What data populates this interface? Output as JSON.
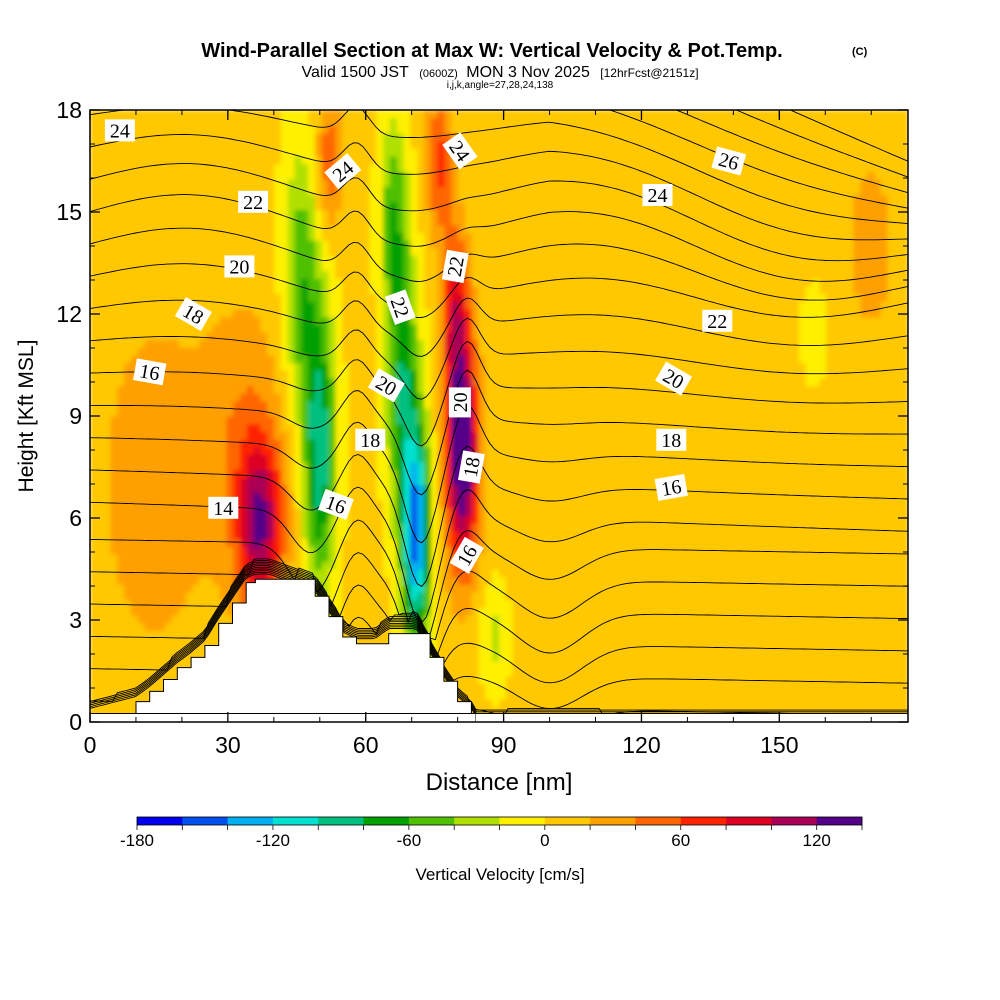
{
  "chart_data": {
    "type": "heatmap",
    "title": "Wind-Parallel Section at Max W: Vertical Velocity & Pot.Temp.",
    "title_mark": "(C)",
    "subtitle": {
      "valid_label": "Valid 1500 JST",
      "utc": "(0600Z)",
      "date": "MON 3 Nov 2025",
      "forecast": "[12hrFcst@2151z]"
    },
    "section_info": "i,j,k,angle=27,28,24,138",
    "xlabel": "Distance [nm]",
    "ylabel": "Height [Kft MSL]",
    "xlim": [
      0,
      178
    ],
    "ylim": [
      0,
      18
    ],
    "xticks": [
      0,
      30,
      60,
      90,
      120,
      150
    ],
    "xtick_labels": [
      "0",
      "30",
      "60",
      "90",
      "120",
      "150"
    ],
    "yticks": [
      0,
      3,
      6,
      9,
      12,
      15,
      18
    ],
    "ytick_labels": [
      "0",
      "3",
      "6",
      "9",
      "12",
      "15",
      "18"
    ],
    "colorbar": {
      "label": "Vertical Velocity [cm/s]",
      "levels": [
        -180,
        -160,
        -140,
        -120,
        -100,
        -80,
        -60,
        -40,
        -20,
        0,
        20,
        40,
        60,
        80,
        100,
        120,
        140
      ],
      "tick_values": [
        -180,
        -120,
        -60,
        0,
        60,
        120
      ],
      "tick_labels": [
        "-180",
        "-120",
        "-60",
        "0",
        "60",
        "120"
      ],
      "colors": [
        "#0000ee",
        "#0050ee",
        "#00b0f0",
        "#00e0d0",
        "#00c080",
        "#00a000",
        "#50c000",
        "#b0e000",
        "#fff000",
        "#ffc800",
        "#ffa000",
        "#ff6600",
        "#ff2200",
        "#dd0022",
        "#aa0055",
        "#550088"
      ]
    },
    "vertical_velocity_features": [
      {
        "kind": "background",
        "value": 5
      },
      {
        "kind": "updraft",
        "x": 37,
        "y": 5.8,
        "sx": 5,
        "sy": 2.5,
        "value": 105
      },
      {
        "kind": "updraft",
        "x": 34,
        "y": 8.5,
        "sx": 9,
        "sy": 4,
        "value": 30
      },
      {
        "kind": "updraft",
        "x": 14,
        "y": 7,
        "sx": 14,
        "sy": 6,
        "value": 25
      },
      {
        "kind": "updraft",
        "x": 76,
        "y": 16.5,
        "sx": 3,
        "sy": 2,
        "value": 60
      },
      {
        "kind": "updraft",
        "x": 52,
        "y": 16.5,
        "sx": 3,
        "sy": 2,
        "value": 50
      },
      {
        "kind": "updraft",
        "x": 81,
        "y": 7.8,
        "sx": 3.5,
        "sy": 3.2,
        "value": 150
      },
      {
        "kind": "updraft",
        "x": 79.5,
        "y": 12,
        "sx": 3,
        "sy": 2.5,
        "value": 80
      },
      {
        "kind": "downdraft",
        "x": 71,
        "y": 5.5,
        "sx": 3,
        "sy": 3.2,
        "value": -150
      },
      {
        "kind": "downdraft",
        "x": 68,
        "y": 10,
        "sx": 3.5,
        "sy": 4,
        "value": -80
      },
      {
        "kind": "downdraft",
        "x": 66,
        "y": 15,
        "sx": 3,
        "sy": 3,
        "value": -55
      },
      {
        "kind": "downdraft",
        "x": 50,
        "y": 8,
        "sx": 3.5,
        "sy": 4,
        "value": -100
      },
      {
        "kind": "downdraft",
        "x": 46,
        "y": 13,
        "sx": 4,
        "sy": 4,
        "value": -60
      },
      {
        "kind": "downdraft",
        "x": 88,
        "y": 2.5,
        "sx": 3,
        "sy": 1.5,
        "value": -30
      },
      {
        "kind": "downdraft",
        "x": 158,
        "y": 11.5,
        "sx": 3,
        "sy": 1.5,
        "value": -25
      },
      {
        "kind": "updraft",
        "x": 128,
        "y": 4,
        "sx": 15,
        "sy": 4,
        "value": 15
      },
      {
        "kind": "updraft",
        "x": 170,
        "y": 14,
        "sx": 10,
        "sy": 5,
        "value": 18
      }
    ],
    "terrain_profile": {
      "x": [
        0,
        10,
        13,
        16,
        19,
        22,
        25,
        28,
        31,
        34,
        36,
        39,
        49,
        52,
        55,
        58,
        62,
        65,
        71,
        74,
        77,
        80,
        83,
        84
      ],
      "height": [
        0.25,
        0.6,
        0.9,
        1.25,
        1.6,
        1.9,
        2.25,
        2.9,
        3.5,
        4.1,
        4.2,
        4.2,
        3.7,
        3.1,
        2.5,
        2.3,
        2.3,
        2.6,
        2.6,
        1.9,
        1.2,
        0.6,
        0.25,
        0
      ]
    },
    "potential_temperature": {
      "levels": [
        6,
        7,
        8,
        9,
        10,
        11,
        12,
        13,
        14,
        15,
        16,
        17,
        18,
        19,
        20,
        21,
        22,
        23,
        24,
        25,
        26,
        27,
        28,
        29,
        30,
        31,
        32,
        33
      ],
      "labels": [
        {
          "text": "24",
          "x": 6.5,
          "y": 17.4,
          "angle": 0
        },
        {
          "text": "22",
          "x": 35.5,
          "y": 15.3,
          "angle": 0
        },
        {
          "text": "20",
          "x": 32.5,
          "y": 13.4,
          "angle": 0
        },
        {
          "text": "18",
          "x": 22.5,
          "y": 12,
          "angle": 30
        },
        {
          "text": "16",
          "x": 13,
          "y": 10.3,
          "angle": 10
        },
        {
          "text": "14",
          "x": 29,
          "y": 6.3,
          "angle": 0
        },
        {
          "text": "24",
          "x": 55,
          "y": 16.2,
          "angle": -40
        },
        {
          "text": "22",
          "x": 67.5,
          "y": 12.2,
          "angle": 70
        },
        {
          "text": "20",
          "x": 64.5,
          "y": 9.9,
          "angle": 30
        },
        {
          "text": "18",
          "x": 61,
          "y": 8.3,
          "angle": 0
        },
        {
          "text": "16",
          "x": 53.5,
          "y": 6.4,
          "angle": 20
        },
        {
          "text": "24",
          "x": 80.5,
          "y": 16.8,
          "angle": 55
        },
        {
          "text": "22",
          "x": 79.5,
          "y": 13.4,
          "angle": -80
        },
        {
          "text": "20",
          "x": 80.5,
          "y": 9.4,
          "angle": -90
        },
        {
          "text": "18",
          "x": 83,
          "y": 7.5,
          "angle": -80
        },
        {
          "text": "16",
          "x": 82,
          "y": 4.9,
          "angle": -60
        },
        {
          "text": "24",
          "x": 123.5,
          "y": 15.5,
          "angle": 0
        },
        {
          "text": "26",
          "x": 139,
          "y": 16.5,
          "angle": 15
        },
        {
          "text": "22",
          "x": 136.5,
          "y": 11.8,
          "angle": 0
        },
        {
          "text": "20",
          "x": 127,
          "y": 10.1,
          "angle": 30
        },
        {
          "text": "18",
          "x": 126.5,
          "y": 8.3,
          "angle": 0
        },
        {
          "text": "16",
          "x": 126.5,
          "y": 6.9,
          "angle": -10
        }
      ]
    }
  }
}
